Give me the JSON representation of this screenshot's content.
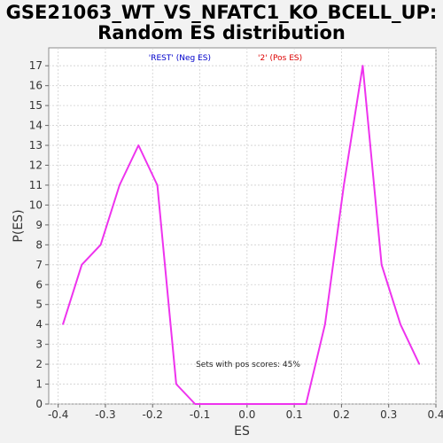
{
  "chart_data": {
    "type": "line",
    "title": "GSE21063_WT_VS_NFATC1_KO_BCELL_UP:",
    "subtitle": "Random ES distribution",
    "xlabel": "ES",
    "ylabel": "P(ES)",
    "xlim": [
      -0.42,
      0.4
    ],
    "ylim": [
      0,
      17.9
    ],
    "x_ticks": [
      -0.4,
      -0.3,
      -0.2,
      -0.1,
      0.0,
      0.1,
      0.2,
      0.3,
      0.4
    ],
    "x_tick_labels": [
      "-0.4",
      "-0.3",
      "-0.2",
      "-0.1",
      "0.0",
      "0.1",
      "0.2",
      "0.3",
      "0.4"
    ],
    "y_ticks": [
      0,
      1,
      2,
      3,
      4,
      5,
      6,
      7,
      8,
      9,
      10,
      11,
      12,
      13,
      14,
      15,
      16,
      17
    ],
    "y_tick_labels": [
      "0",
      "1",
      "2",
      "3",
      "4",
      "5",
      "6",
      "7",
      "8",
      "9",
      "10",
      "11",
      "12",
      "13",
      "14",
      "15",
      "16",
      "17"
    ],
    "grid": true,
    "legend": [
      {
        "label": "'REST' (Neg ES)",
        "color": "#0000cc"
      },
      {
        "label": "'2' (Pos ES)",
        "color": "#dd0000"
      }
    ],
    "annotation": "Sets with pos scores: 45%",
    "series": [
      {
        "name": "Random ES",
        "color": "#ee33ee",
        "x": [
          -0.39,
          -0.35,
          -0.31,
          -0.27,
          -0.23,
          -0.19,
          -0.15,
          -0.11,
          -0.07,
          -0.03,
          0.01,
          0.05,
          0.09,
          0.125,
          0.165,
          0.205,
          0.245,
          0.285,
          0.325,
          0.365
        ],
        "y": [
          4,
          7,
          8,
          11,
          13,
          11,
          1,
          0,
          0,
          0,
          0,
          0,
          0,
          0,
          4,
          11,
          17,
          7,
          4,
          2
        ]
      }
    ]
  }
}
